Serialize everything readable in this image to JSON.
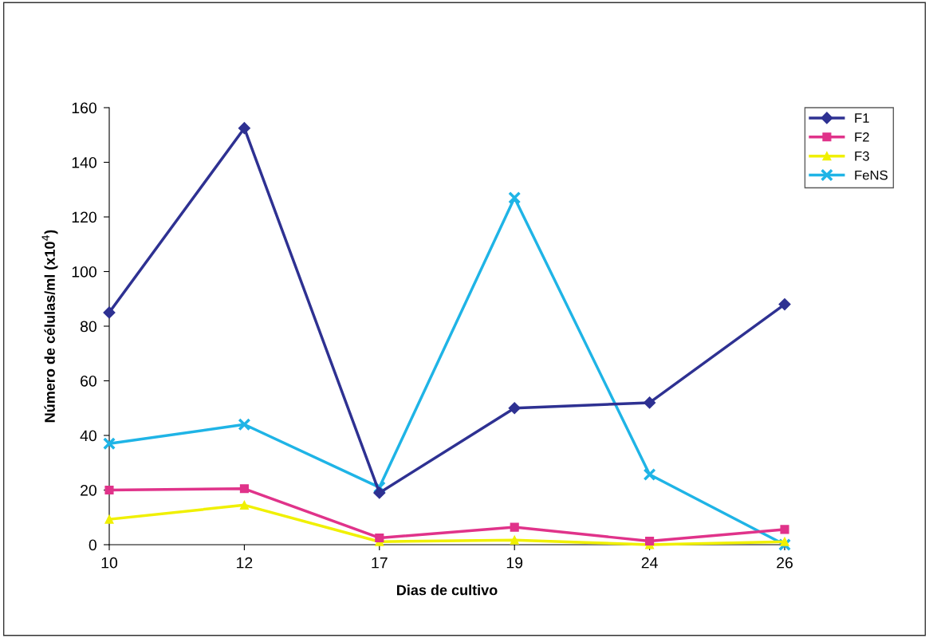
{
  "chart_data": {
    "type": "line",
    "xlabel": "Dias de cultivo",
    "ylabel": "Número de células/ml (x10$^{4}$)",
    "categories": [
      "10",
      "12",
      "17",
      "19",
      "24",
      "26"
    ],
    "series": [
      {
        "name": "F1",
        "color": "#2e3192",
        "marker": "diamond",
        "values": [
          85,
          152.5,
          19,
          50,
          52,
          88
        ]
      },
      {
        "name": "F2",
        "color": "#e0338a",
        "marker": "square",
        "values": [
          20,
          20.5,
          2.5,
          6.4,
          1.3,
          5.6
        ]
      },
      {
        "name": "F3",
        "color": "#f0f000",
        "marker": "triangle",
        "values": [
          9.3,
          14.5,
          1.1,
          1.7,
          0,
          1.1
        ]
      },
      {
        "name": "FeNS",
        "color": "#1fb4e6",
        "marker": "cross",
        "values": [
          37,
          44,
          21,
          127,
          25.7,
          0
        ]
      }
    ],
    "ylim": [
      0,
      160
    ],
    "yticks": [
      0,
      20,
      40,
      60,
      80,
      100,
      120,
      140,
      160
    ],
    "grid": false,
    "legend": "right",
    "line_style": "solid"
  }
}
